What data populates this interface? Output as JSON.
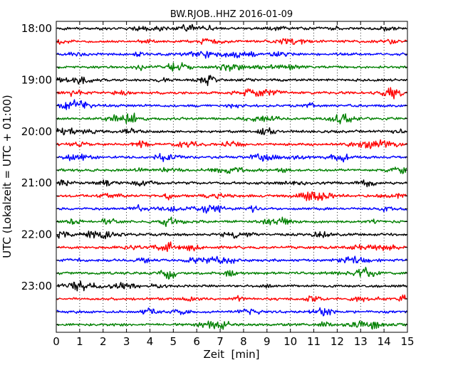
{
  "chart_data": {
    "type": "line",
    "subtype": "seismogram-dayplot",
    "title": "BW.RJOB..HHZ 2016-01-09",
    "xlabel": "Zeit  [min]",
    "ylabel": "UTC (Lokalzeit = UTC + 01:00)",
    "xlim": [
      0,
      15
    ],
    "x_ticks": [
      "0",
      "1",
      "2",
      "3",
      "4",
      "5",
      "6",
      "7",
      "8",
      "9",
      "10",
      "11",
      "12",
      "13",
      "14",
      "15"
    ],
    "y_tick_labels": [
      "18:00",
      "19:00",
      "20:00",
      "21:00",
      "22:00",
      "23:00"
    ],
    "traces_per_hour": 4,
    "minutes_per_trace": 15,
    "num_traces": 24,
    "trace_colors": [
      "#000000",
      "#ff0000",
      "#0000ff",
      "#008000"
    ],
    "grid": "vertical dotted at each minute"
  }
}
